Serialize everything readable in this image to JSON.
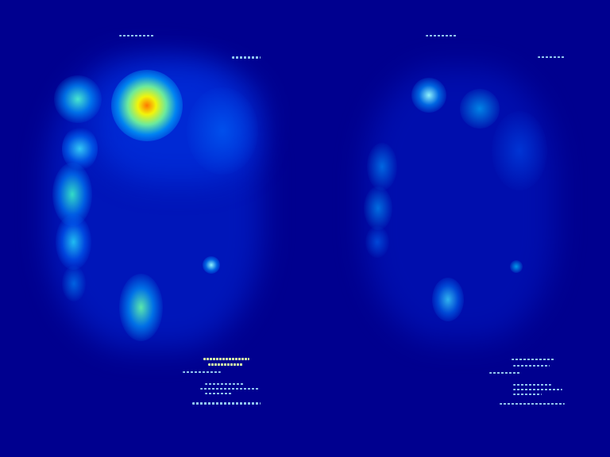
{
  "image": {
    "description_colors": {
      "background": "#00008f",
      "heat_low": "#0030ff",
      "heat_mid": "#00c8ff",
      "heat_high": "#ffff00",
      "heat_peak": "#ff7a00"
    }
  }
}
